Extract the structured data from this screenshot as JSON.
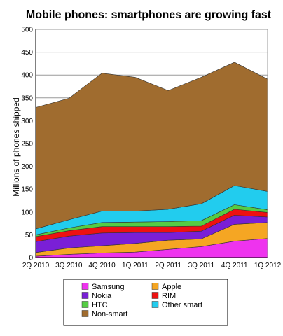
{
  "chart_data": {
    "type": "area",
    "stacked": true,
    "title": "Mobile phones: smartphones are growing fast",
    "xlabel": "",
    "ylabel": "Millions of phones shipped",
    "ylim": [
      0,
      500
    ],
    "yticks": [
      0,
      50,
      100,
      150,
      200,
      250,
      300,
      350,
      400,
      450,
      500
    ],
    "grid": true,
    "legend_position": "bottom",
    "categories": [
      "2Q 2010",
      "3Q 2010",
      "4Q 2010",
      "1Q 2011",
      "2Q 2011",
      "3Q 2011",
      "4Q 2011",
      "1Q 2012"
    ],
    "series": [
      {
        "name": "Samsung",
        "color": "#ee33ee",
        "values": [
          3,
          7,
          10,
          12,
          18,
          24,
          36,
          42
        ]
      },
      {
        "name": "Apple",
        "color": "#f5a623",
        "values": [
          8,
          14,
          16,
          19,
          20,
          17,
          37,
          35
        ]
      },
      {
        "name": "Nokia",
        "color": "#7a1fd6",
        "values": [
          24,
          26,
          28,
          24,
          17,
          17,
          20,
          12
        ]
      },
      {
        "name": "RIM",
        "color": "#ee1111",
        "values": [
          11,
          12,
          14,
          13,
          13,
          11,
          13,
          10
        ]
      },
      {
        "name": "HTC",
        "color": "#55cc44",
        "values": [
          4,
          6,
          9,
          10,
          11,
          12,
          10,
          6
        ]
      },
      {
        "name": "Other smart",
        "color": "#22ccee",
        "values": [
          13,
          18,
          25,
          24,
          27,
          37,
          42,
          40
        ]
      },
      {
        "name": "Non-smart",
        "color": "#a06c2f",
        "values": [
          266,
          266,
          302,
          293,
          260,
          277,
          270,
          246
        ]
      }
    ]
  }
}
